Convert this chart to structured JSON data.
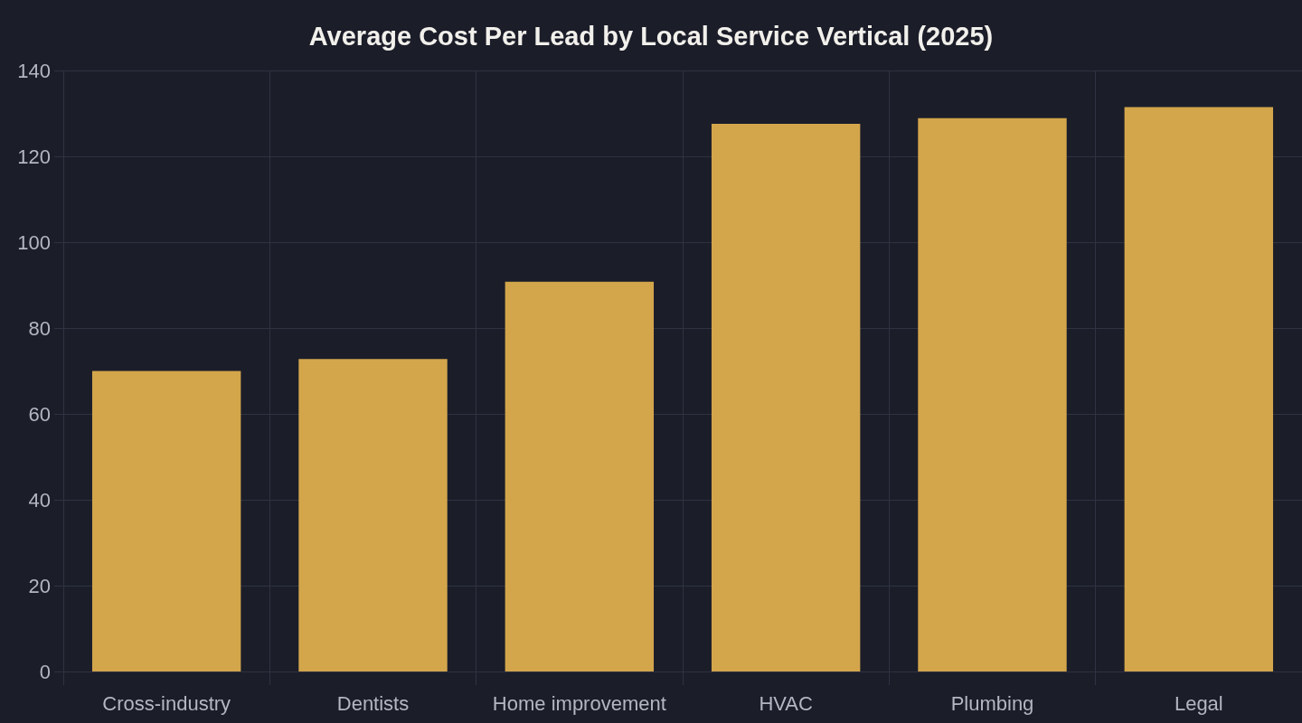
{
  "chart_data": {
    "type": "bar",
    "title": "Average Cost Per Lead by Local Service Vertical (2025)",
    "categories": [
      "Cross-industry",
      "Dentists",
      "Home improvement",
      "HVAC",
      "Plumbing",
      "Legal"
    ],
    "values": [
      70,
      72.8,
      90.8,
      127.6,
      128.9,
      131.5
    ],
    "color": "#d3a64c",
    "ylim": [
      0,
      140
    ],
    "yticks": [
      0,
      20,
      40,
      60,
      80,
      100,
      120,
      140
    ],
    "grid": true
  }
}
